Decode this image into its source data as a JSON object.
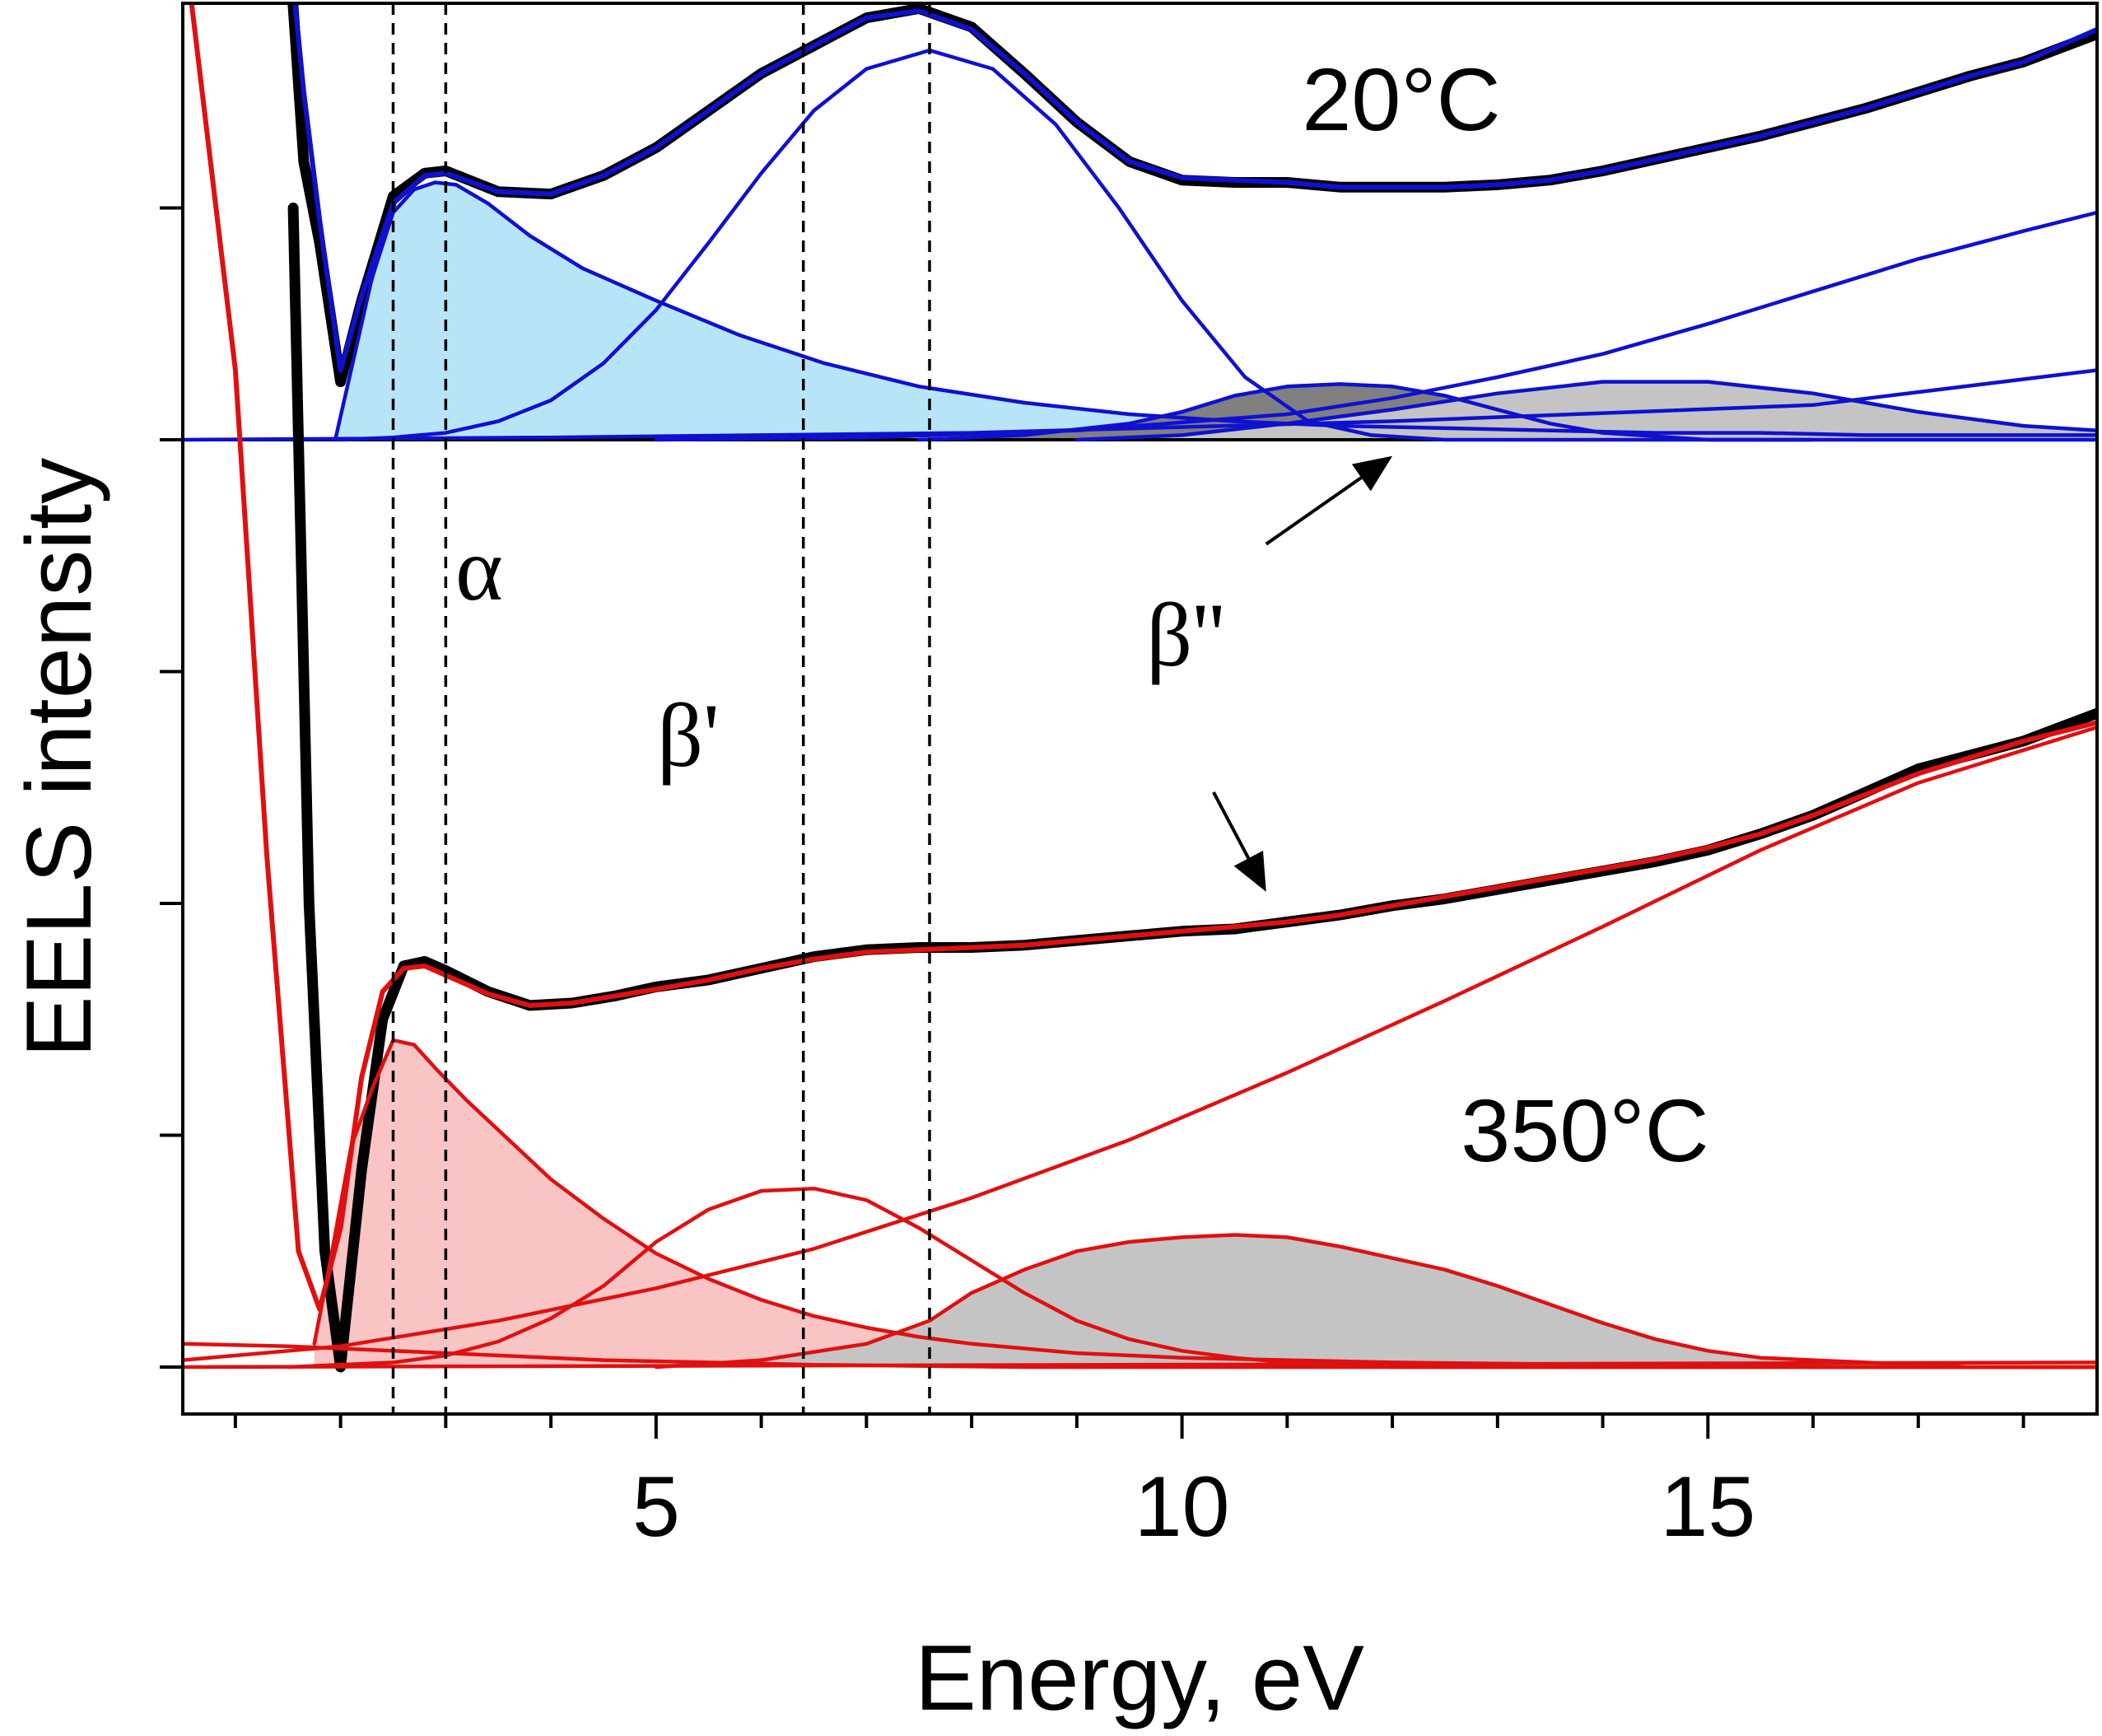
{
  "chart_data": {
    "type": "line",
    "title": "",
    "xlabel": "Energy, eV",
    "ylabel": "EELS intensity",
    "xlim": [
      0.5,
      18.7
    ],
    "ylim": [
      0,
      6.2
    ],
    "x_ticks": [
      5,
      10,
      15
    ],
    "x_minor_ticks": [
      1,
      2,
      3,
      4,
      6,
      7,
      8,
      9,
      11,
      12,
      13,
      14,
      16,
      17,
      18
    ],
    "y_ticks": [
      1,
      2,
      3,
      4,
      5
    ],
    "y_ticks_labeled": false,
    "grid": false,
    "legend": "none",
    "reference_lines_x": [
      2.5,
      3.0,
      6.4,
      7.6
    ],
    "annotations": [
      {
        "text": "20°C",
        "x": 11.0,
        "y": 5.38,
        "role": "panel-label-top"
      },
      {
        "text": "350°C",
        "x": 14.0,
        "y": 0.86,
        "role": "panel-label-bottom"
      },
      {
        "text": "α",
        "x": 3.6,
        "y": 3.3,
        "role": "peak-label"
      },
      {
        "text": "β'",
        "x": 5.4,
        "y": 2.55,
        "role": "peak-label"
      },
      {
        "text": "β''",
        "x": 10.5,
        "y": 2.7,
        "role": "peak-label"
      }
    ],
    "arrows": [
      {
        "from": [
          10.8,
          3.55
        ],
        "to": [
          12.0,
          3.93
        ]
      },
      {
        "from": [
          10.3,
          2.48
        ],
        "to": [
          10.8,
          2.05
        ]
      }
    ],
    "series": [
      {
        "name": "20°C measured spectrum",
        "color": "#000000",
        "x": [
          1.5,
          1.65,
          1.8,
          2.0,
          2.2,
          2.5,
          2.8,
          3.0,
          3.5,
          4.0,
          4.5,
          5.0,
          5.5,
          6.0,
          6.5,
          7.0,
          7.5,
          8.0,
          8.5,
          9.0,
          9.5,
          10.0,
          10.5,
          11.0,
          11.5,
          12.0,
          12.5,
          13.0,
          13.5,
          14.0,
          14.5,
          15.0,
          15.5,
          16.0,
          16.5,
          17.0,
          17.5,
          18.0,
          18.7
        ],
        "y": [
          6.2,
          5.2,
          4.85,
          4.25,
          4.6,
          5.05,
          5.15,
          5.16,
          5.07,
          5.06,
          5.14,
          5.26,
          5.42,
          5.58,
          5.7,
          5.82,
          5.86,
          5.78,
          5.58,
          5.37,
          5.2,
          5.12,
          5.11,
          5.11,
          5.09,
          5.09,
          5.09,
          5.1,
          5.12,
          5.16,
          5.21,
          5.26,
          5.31,
          5.37,
          5.43,
          5.5,
          5.57,
          5.63,
          5.75
        ]
      },
      {
        "name": "20°C fit sum",
        "color": "#1010d0",
        "x": [
          1.5,
          1.65,
          1.8,
          2.0,
          2.2,
          2.5,
          2.8,
          3.0,
          3.5,
          4.0,
          4.5,
          5.0,
          5.5,
          6.0,
          6.5,
          7.0,
          7.5,
          8.0,
          8.5,
          9.0,
          9.5,
          10.0,
          10.5,
          11.0,
          11.5,
          12.0,
          12.5,
          13.0,
          13.5,
          14.0,
          14.5,
          15.0,
          15.5,
          16.0,
          16.5,
          17.0,
          17.5,
          18.0,
          18.7
        ],
        "y": [
          6.2,
          5.5,
          4.95,
          4.3,
          4.62,
          5.02,
          5.14,
          5.15,
          5.07,
          5.06,
          5.14,
          5.26,
          5.42,
          5.58,
          5.7,
          5.82,
          5.85,
          5.77,
          5.58,
          5.37,
          5.2,
          5.13,
          5.12,
          5.11,
          5.09,
          5.09,
          5.09,
          5.1,
          5.12,
          5.16,
          5.21,
          5.26,
          5.31,
          5.37,
          5.43,
          5.5,
          5.57,
          5.63,
          5.77
        ]
      },
      {
        "name": "20°C α component",
        "color": "#1010d0",
        "fill": "#b8e4f8",
        "x": [
          1.95,
          2.1,
          2.3,
          2.5,
          2.7,
          2.9,
          3.1,
          3.4,
          3.8,
          4.3,
          5.0,
          5.8,
          6.6,
          7.5,
          8.5,
          9.5,
          10.5,
          11.5,
          12.5,
          13.5,
          14.5,
          15.5,
          16.5,
          17.5,
          18.7
        ],
        "y": [
          4.0,
          4.3,
          4.7,
          4.98,
          5.08,
          5.11,
          5.1,
          5.02,
          4.88,
          4.74,
          4.6,
          4.45,
          4.33,
          4.23,
          4.16,
          4.11,
          4.08,
          4.06,
          4.05,
          4.04,
          4.03,
          4.03,
          4.02,
          4.02,
          4.02
        ]
      },
      {
        "name": "20°C β' component",
        "color": "#1010d0",
        "x": [
          2.0,
          2.5,
          3.0,
          3.5,
          4.0,
          4.5,
          5.0,
          5.5,
          6.0,
          6.5,
          7.0,
          7.6,
          8.2,
          8.8,
          9.4,
          10.0,
          10.6,
          11.2,
          11.8,
          12.5,
          13.5,
          14.5,
          15.5,
          16.5,
          17.5,
          18.7
        ],
        "y": [
          4.0,
          4.01,
          4.03,
          4.08,
          4.17,
          4.33,
          4.56,
          4.85,
          5.15,
          5.42,
          5.6,
          5.68,
          5.6,
          5.36,
          5.0,
          4.6,
          4.27,
          4.08,
          4.02,
          4.0,
          4.0,
          4.0,
          4.0,
          4.0,
          4.0,
          4.0
        ]
      },
      {
        "name": "20°C β'' component (dark grey)",
        "color": "#1010d0",
        "fill": "#808080",
        "x": [
          7.5,
          8.5,
          9.5,
          10.0,
          10.5,
          11.0,
          11.5,
          12.0,
          12.5,
          13.0,
          13.5,
          14.0,
          15.0,
          16.0
        ],
        "y": [
          4.0,
          4.02,
          4.07,
          4.12,
          4.19,
          4.23,
          4.24,
          4.23,
          4.19,
          4.13,
          4.07,
          4.03,
          4.0,
          4.0
        ]
      },
      {
        "name": "20°C broad component (light grey)",
        "color": "#1010d0",
        "fill": "#c4c4c4",
        "x": [
          9.0,
          10.0,
          11.0,
          12.0,
          13.0,
          14.0,
          15.0,
          16.0,
          17.0,
          18.0,
          18.7
        ],
        "y": [
          4.0,
          4.02,
          4.07,
          4.13,
          4.2,
          4.25,
          4.25,
          4.2,
          4.12,
          4.06,
          4.04
        ]
      },
      {
        "name": "20°C background rising",
        "color": "#1010d0",
        "x": [
          5.0,
          7.0,
          9.0,
          11.0,
          12.0,
          13.0,
          14.0,
          15.0,
          16.0,
          17.0,
          18.0,
          18.7
        ],
        "y": [
          4.0,
          4.01,
          4.04,
          4.11,
          4.18,
          4.27,
          4.37,
          4.5,
          4.64,
          4.78,
          4.9,
          4.98
        ]
      },
      {
        "name": "20°C background linear",
        "color": "#1010d0",
        "x": [
          0.5,
          4.0,
          8.0,
          12.0,
          16.0,
          18.7
        ],
        "y": [
          4.0,
          4.01,
          4.03,
          4.08,
          4.15,
          4.3
        ]
      },
      {
        "name": "350°C measured spectrum",
        "color": "#000000",
        "x": [
          1.55,
          1.7,
          1.85,
          2.0,
          2.2,
          2.4,
          2.6,
          2.8,
          3.0,
          3.4,
          3.8,
          4.2,
          4.6,
          5.0,
          5.5,
          6.0,
          6.5,
          7.0,
          7.5,
          8.0,
          8.5,
          9.0,
          9.5,
          10.0,
          10.5,
          11.0,
          11.5,
          12.0,
          12.5,
          13.0,
          13.5,
          14.0,
          14.5,
          15.0,
          15.5,
          16.0,
          16.5,
          17.0,
          17.5,
          18.0,
          18.7
        ],
        "y": [
          5.0,
          2.0,
          0.5,
          0.0,
          0.85,
          1.5,
          1.73,
          1.75,
          1.71,
          1.62,
          1.56,
          1.57,
          1.6,
          1.64,
          1.67,
          1.72,
          1.77,
          1.8,
          1.81,
          1.81,
          1.82,
          1.84,
          1.86,
          1.88,
          1.89,
          1.92,
          1.95,
          1.99,
          2.02,
          2.06,
          2.1,
          2.14,
          2.18,
          2.23,
          2.3,
          2.38,
          2.48,
          2.58,
          2.64,
          2.7,
          2.82
        ]
      },
      {
        "name": "350°C fit sum",
        "color": "#e01010",
        "x": [
          0.5,
          1.0,
          1.3,
          1.6,
          1.8,
          2.0,
          2.2,
          2.4,
          2.6,
          2.8,
          3.0,
          3.4,
          3.8,
          4.2,
          4.6,
          5.0,
          5.5,
          6.0,
          6.5,
          7.0,
          7.5,
          8.0,
          8.5,
          9.0,
          9.5,
          10.0,
          10.5,
          11.0,
          11.5,
          12.0,
          12.5,
          13.0,
          13.5,
          14.0,
          14.5,
          15.0,
          15.5,
          16.0,
          16.5,
          17.0,
          17.5,
          18.0,
          18.7
        ],
        "y": [
          6.2,
          4.3,
          2.2,
          0.5,
          0.25,
          0.6,
          1.25,
          1.62,
          1.72,
          1.73,
          1.69,
          1.61,
          1.56,
          1.57,
          1.6,
          1.63,
          1.67,
          1.72,
          1.76,
          1.79,
          1.8,
          1.81,
          1.82,
          1.84,
          1.86,
          1.88,
          1.9,
          1.92,
          1.95,
          1.99,
          2.03,
          2.07,
          2.11,
          2.15,
          2.19,
          2.24,
          2.3,
          2.38,
          2.47,
          2.56,
          2.63,
          2.7,
          2.78
        ]
      },
      {
        "name": "350°C α component",
        "color": "#e01010",
        "fill": "#f8c4c4",
        "x": [
          1.75,
          1.9,
          2.1,
          2.3,
          2.5,
          2.7,
          2.9,
          3.2,
          3.6,
          4.0,
          4.5,
          5.0,
          5.5,
          6.0,
          6.5,
          7.0,
          7.5,
          8.0,
          9.0,
          10.0,
          11.0,
          12.0,
          13.0,
          14.0,
          15.0,
          16.0,
          17.0,
          18.7
        ],
        "y": [
          0.1,
          0.45,
          0.95,
          1.2,
          1.41,
          1.39,
          1.29,
          1.15,
          0.98,
          0.81,
          0.64,
          0.49,
          0.38,
          0.29,
          0.22,
          0.17,
          0.13,
          0.1,
          0.06,
          0.04,
          0.03,
          0.02,
          0.015,
          0.01,
          0.005,
          0.0,
          0.0,
          0.0
        ]
      },
      {
        "name": "350°C β' component",
        "color": "#e01010",
        "x": [
          1.5,
          2.5,
          3.0,
          3.5,
          4.0,
          4.5,
          5.0,
          5.5,
          6.0,
          6.5,
          7.0,
          7.5,
          8.0,
          8.5,
          9.0,
          9.5,
          10.0,
          10.5,
          11.0,
          12.0,
          13.0,
          14.0,
          15.0,
          16.0,
          17.0,
          18.7
        ],
        "y": [
          0.0,
          0.02,
          0.05,
          0.11,
          0.21,
          0.35,
          0.54,
          0.68,
          0.76,
          0.77,
          0.72,
          0.6,
          0.46,
          0.32,
          0.2,
          0.12,
          0.07,
          0.04,
          0.02,
          0.0,
          0.0,
          0.0,
          0.0,
          0.0,
          0.0,
          0.0
        ]
      },
      {
        "name": "350°C β'' component (grey)",
        "color": "#e01010",
        "fill": "#c4c4c4",
        "x": [
          5.0,
          6.0,
          7.0,
          7.6,
          8.0,
          8.5,
          9.0,
          9.5,
          10.0,
          10.5,
          11.0,
          11.5,
          12.0,
          12.5,
          13.0,
          13.5,
          14.0,
          14.5,
          15.0,
          15.5,
          16.0,
          16.5,
          17.0,
          17.5,
          18.7
        ],
        "y": [
          0.0,
          0.03,
          0.1,
          0.2,
          0.32,
          0.42,
          0.5,
          0.54,
          0.56,
          0.57,
          0.56,
          0.52,
          0.47,
          0.42,
          0.35,
          0.27,
          0.19,
          0.12,
          0.07,
          0.04,
          0.03,
          0.02,
          0.01,
          0.0,
          0.0
        ]
      },
      {
        "name": "350°C rising background",
        "color": "#e01010",
        "x": [
          0.5,
          2.0,
          3.5,
          5.0,
          6.5,
          8.0,
          9.5,
          11.0,
          12.5,
          14.0,
          15.5,
          17.0,
          18.7
        ],
        "y": [
          0.03,
          0.09,
          0.2,
          0.34,
          0.51,
          0.73,
          0.98,
          1.27,
          1.58,
          1.9,
          2.23,
          2.52,
          2.76
        ]
      },
      {
        "name": "350°C tail component",
        "color": "#e01010",
        "x": [
          0.5,
          1.5,
          2.5,
          3.5,
          4.5,
          5.5,
          6.5,
          7.5,
          8.5,
          9.5,
          10.5,
          11.5,
          12.5,
          13.5,
          14.5,
          15.5,
          16.5,
          18.7
        ],
        "y": [
          0.1,
          0.09,
          0.07,
          0.05,
          0.03,
          0.02,
          0.01,
          0.005,
          0.0,
          0.0,
          0.0,
          0.0,
          0.0,
          0.0,
          0.0,
          0.0,
          0.0,
          0.0
        ]
      },
      {
        "name": "350°C baseline",
        "color": "#e01010",
        "x": [
          0.5,
          18.7
        ],
        "y": [
          0.0,
          0.02
        ]
      }
    ]
  }
}
